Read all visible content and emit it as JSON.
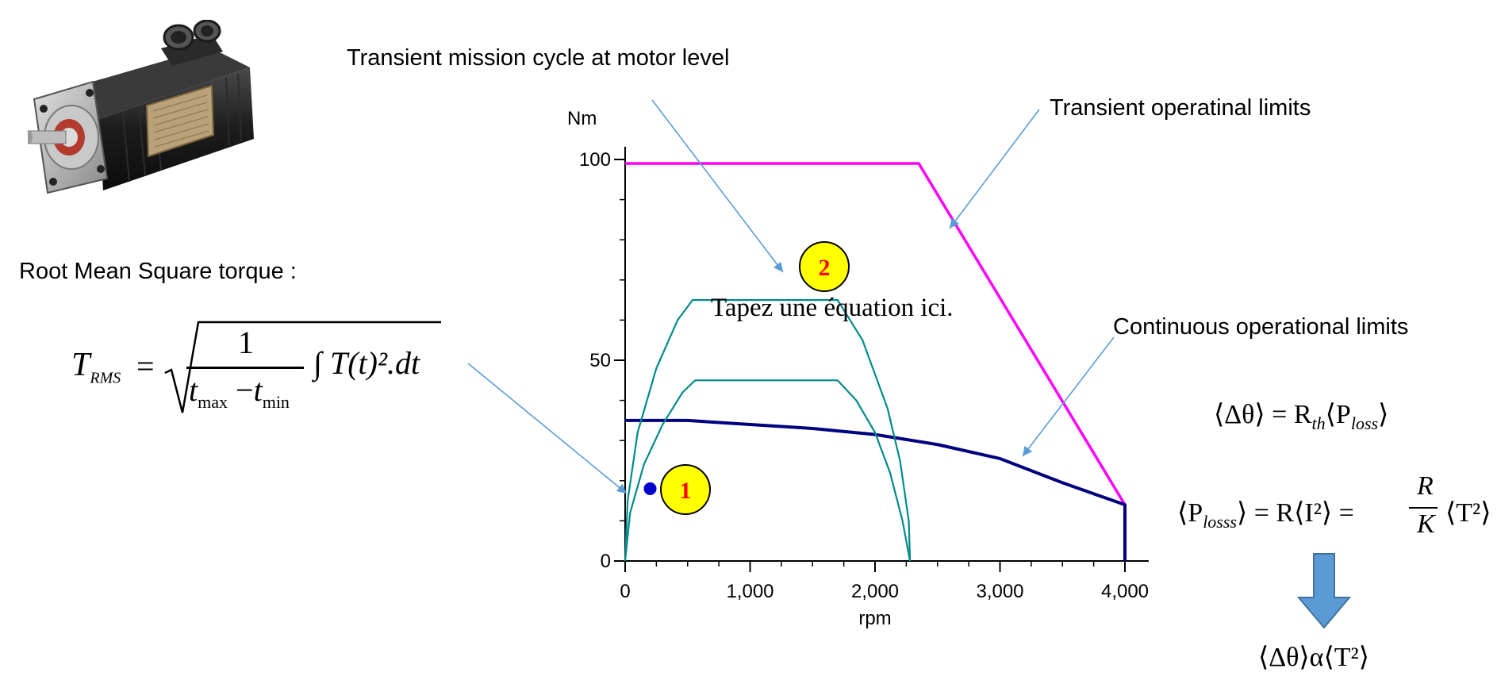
{
  "headings": {
    "mission_cycle": "Transient mission cycle at motor level",
    "transient_limits": "Transient operatinal limits",
    "continuous_limits": "Continuous operational limits",
    "rms_torque": "Root Mean Square torque :",
    "placeholder_equation": "Tapez une équation ici."
  },
  "formulas": {
    "t_rms_lhs": "T",
    "t_rms_sub": "RMS",
    "t_rms_num": "1",
    "t_rms_den_a": "t",
    "t_rms_den_a_sub": "max",
    "t_rms_den_minus": "−",
    "t_rms_den_b": "t",
    "t_rms_den_b_sub": "min",
    "t_rms_integrand": "∫ T(t)².dt",
    "eq_theta": "⟨Δθ⟩ = R",
    "eq_theta_sub": "th",
    "eq_theta_rhs": "⟨P",
    "eq_theta_rhs_sub": "loss",
    "eq_theta_end": "⟩",
    "eq_ploss_lhs": "⟨P",
    "eq_ploss_sub": "losss",
    "eq_ploss_mid": "⟩ = R⟨I²⟩ =",
    "eq_ploss_frac_num": "R",
    "eq_ploss_frac_den": "K",
    "eq_ploss_end": "⟨T²⟩",
    "eq_prop": "⟨Δθ⟩α⟨T²⟩"
  },
  "markers": {
    "point1": "1",
    "point2": "2"
  },
  "colors": {
    "transient": "#ff00ff",
    "continuous": "#000080",
    "mission": "#008b8b",
    "marker_fill": "#ffff00",
    "marker_text": "#ff0000",
    "callout_line": "#5b9bd5",
    "arrow": "#5b9bd5"
  },
  "chart_data": {
    "type": "line",
    "xlabel": "rpm",
    "ylabel": "Nm",
    "xlim": [
      0,
      4200
    ],
    "ylim": [
      0,
      100
    ],
    "x_ticks": [
      "0",
      "1,000",
      "2,000",
      "3,000",
      "4,000"
    ],
    "y_ticks": [
      "0",
      "50",
      "100"
    ],
    "grid": false,
    "legend": "none",
    "series": [
      {
        "color": "#ff00ff",
        "points": [
          [
            0,
            99
          ],
          [
            2350,
            99
          ],
          [
            4000,
            14
          ],
          [
            4000,
            0
          ]
        ]
      },
      {
        "color": "#000080",
        "points": [
          [
            0,
            35
          ],
          [
            500,
            35
          ],
          [
            1000,
            34
          ],
          [
            1500,
            33
          ],
          [
            2000,
            31.5
          ],
          [
            2500,
            29
          ],
          [
            3000,
            25.5
          ],
          [
            3500,
            19.5
          ],
          [
            4000,
            14
          ],
          [
            4000,
            0
          ]
        ]
      },
      {
        "color": "#008b8b",
        "points": [
          [
            0,
            0
          ],
          [
            20,
            15
          ],
          [
            100,
            32
          ],
          [
            250,
            48
          ],
          [
            420,
            60
          ],
          [
            540,
            65
          ],
          [
            1700,
            65
          ],
          [
            1900,
            55
          ],
          [
            2100,
            38
          ],
          [
            2200,
            25
          ],
          [
            2270,
            10
          ],
          [
            2280,
            0
          ]
        ]
      },
      {
        "color": "#008b8b",
        "points": [
          [
            0,
            0
          ],
          [
            40,
            12
          ],
          [
            150,
            24
          ],
          [
            300,
            34
          ],
          [
            460,
            42
          ],
          [
            560,
            45
          ],
          [
            1700,
            45
          ],
          [
            1850,
            40
          ],
          [
            2000,
            32
          ],
          [
            2120,
            22
          ],
          [
            2220,
            10
          ],
          [
            2280,
            0
          ]
        ]
      }
    ],
    "points": [
      {
        "label": "1",
        "x": 200,
        "y": 18
      }
    ]
  }
}
